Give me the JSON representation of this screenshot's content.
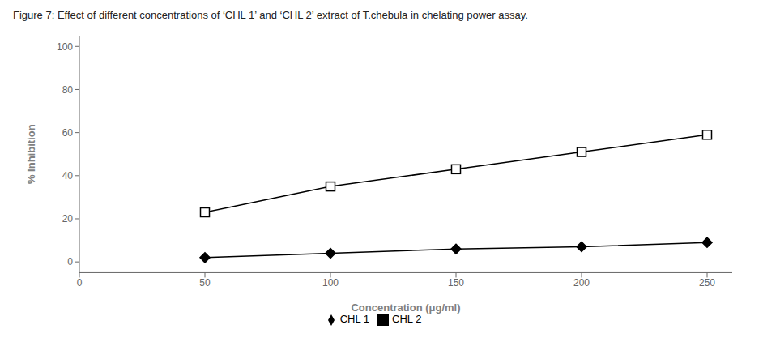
{
  "chart_data": {
    "type": "line",
    "title": "Figure 7: Effect of different concentrations of ‘CHL 1’ and ‘CHL 2’ extract of T.chebula in chelating power assay.",
    "x": [
      50,
      100,
      150,
      200,
      250
    ],
    "series": [
      {
        "name": "CHL 1",
        "color": "#000000",
        "marker": "diamond",
        "values": [
          2,
          4,
          6,
          7,
          9
        ]
      },
      {
        "name": "CHL 2",
        "color": "#000000",
        "marker": "square",
        "values": [
          23,
          35,
          43,
          51,
          59
        ]
      }
    ],
    "xlabel": "Concentration (μg/ml)",
    "ylabel": "% Inhibition",
    "xlim": [
      0,
      260
    ],
    "ylim": [
      -5,
      105
    ],
    "xticks": [
      0,
      50,
      100,
      150,
      200,
      250
    ],
    "yticks": [
      0,
      20,
      40,
      60,
      80,
      100
    ],
    "grid": false,
    "legend": "bottom"
  }
}
